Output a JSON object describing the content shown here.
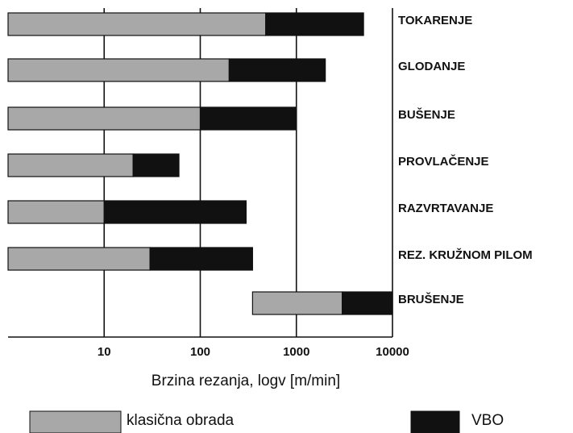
{
  "chart_data": {
    "type": "range-bar",
    "categories": [
      "TOKARENJE",
      "GLODANJE",
      "BUŠENJE",
      "PROVLAČENJE",
      "RAZVRTAVANJE",
      "REZ. KRUŽNOM PILOM",
      "BRUŠENJE"
    ],
    "series": [
      {
        "name": "klasična obrada",
        "color": "#a8a8a8",
        "values": [
          [
            1,
            480
          ],
          [
            1,
            200
          ],
          [
            1,
            100
          ],
          [
            1,
            20
          ],
          [
            1,
            10
          ],
          [
            1,
            30
          ],
          [
            350,
            3000
          ]
        ]
      },
      {
        "name": "VBO",
        "color": "#111111",
        "values": [
          [
            480,
            5000
          ],
          [
            200,
            2000
          ],
          [
            100,
            1000
          ],
          [
            20,
            60
          ],
          [
            10,
            300
          ],
          [
            30,
            350
          ],
          [
            3000,
            10000
          ]
        ]
      }
    ],
    "xlabel": "Brzina rezanja, logv  [m/min]",
    "xscale": "log",
    "xlim": [
      1,
      10000
    ],
    "xticks": [
      10,
      100,
      1000,
      10000
    ],
    "grid": true
  }
}
